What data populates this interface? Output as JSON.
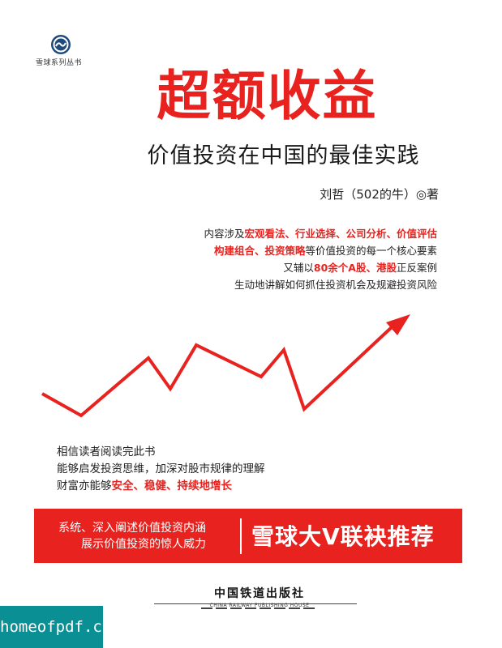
{
  "series": {
    "logo_icon": "snowball-logo-icon",
    "name": "雪球系列丛书"
  },
  "title": "超额收益",
  "subtitle": "价值投资在中国的最佳实践",
  "author": "刘哲（502的牛）◎著",
  "blurb": {
    "line1_prefix": "内容涉及",
    "line1_emph": "宏观看法、行业选择、公司分析、价值评估",
    "line2_emph": "构建组合、投资策略",
    "line2_suffix": "等价值投资的每一个核心要素",
    "line3_prefix": "又辅以",
    "line3_emph": "80余个A股、港股",
    "line3_suffix": "正反案例",
    "line4": "生动地讲解如何抓住投资机会及规避投资风险"
  },
  "reader": {
    "line1": "相信读者阅读完此书",
    "line2": "能够启发投资思维，加深对股市规律的理解",
    "line3_prefix": "财富亦能够",
    "line3_emph": "安全、稳健、持续地增长"
  },
  "banner": {
    "left_line1": "系统、深入阐述价值投资内涵",
    "left_line2": "展示价值投资的惊人威力",
    "right": "雪球大V联袂推荐"
  },
  "publisher": {
    "name_cn": "中国铁道出版社",
    "name_en": "CHINA RAILWAY PUBLISHING HOUSE"
  },
  "watermark": "homeofpdf.com",
  "colors": {
    "accent": "#e8221e",
    "watermark_bg": "#0a8f95"
  }
}
